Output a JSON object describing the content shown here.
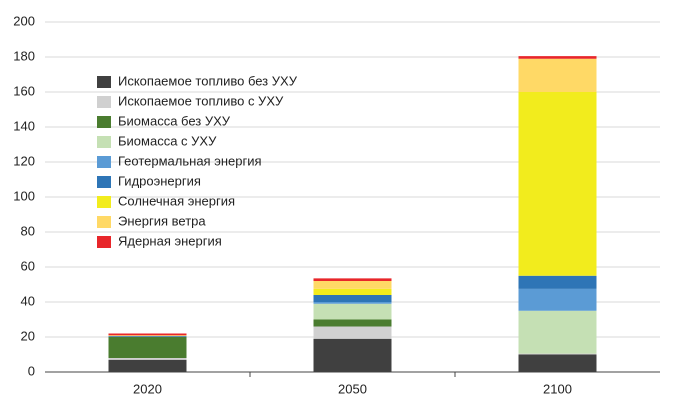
{
  "chart_data": {
    "type": "stacked_bar",
    "categories": [
      "2020",
      "2050",
      "2100"
    ],
    "series": [
      {
        "name": "Ископаемое топливо без УХУ",
        "color": "#404040",
        "values": [
          7,
          19,
          10
        ]
      },
      {
        "name": "Ископаемое топливо с УХУ",
        "color": "#d0d0d0",
        "values": [
          1,
          7,
          0.5
        ]
      },
      {
        "name": "Биомасса без УХУ",
        "color": "#4a7c2f",
        "values": [
          12,
          4,
          0
        ]
      },
      {
        "name": "Биомасса с УХУ",
        "color": "#c5e0b4",
        "values": [
          0,
          9,
          24.5
        ]
      },
      {
        "name": "Геотермальная энергия",
        "color": "#5b9bd5",
        "values": [
          0,
          1,
          12.5
        ]
      },
      {
        "name": "Гидроэнергия",
        "color": "#2e75b6",
        "values": [
          0.5,
          4,
          7.5
        ]
      },
      {
        "name": "Солнечная энергия",
        "color": "#f2ec1d",
        "values": [
          0,
          3.5,
          105
        ]
      },
      {
        "name": "Энергия ветра",
        "color": "#ffd966",
        "values": [
          0.5,
          4.5,
          19
        ]
      },
      {
        "name": "Ядерная энергия",
        "color": "#e8262a",
        "values": [
          1,
          1.5,
          1.5
        ]
      }
    ],
    "ylim": [
      0,
      200
    ],
    "yticks": [
      0,
      20,
      40,
      60,
      80,
      100,
      120,
      140,
      160,
      180,
      200
    ],
    "grid": true
  }
}
